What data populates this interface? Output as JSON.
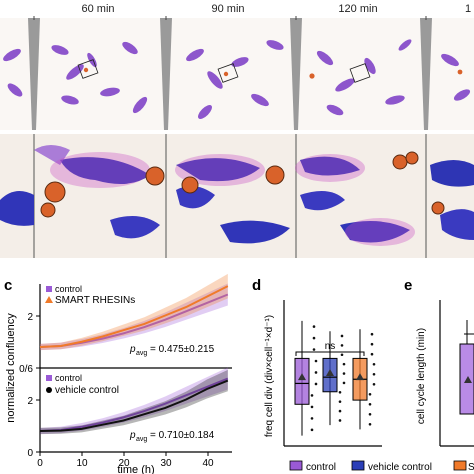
{
  "colors": {
    "control": "#9a5ad6",
    "vehicle_control": "#2b3fb8",
    "smart_rhesins": "#f07a2a",
    "cells_stain": "#6b2bb5",
    "cells_deep": "#2d2fb5",
    "bead": "#e06a25"
  },
  "timepoints": {
    "t60": "60 min",
    "t90": "90 min",
    "t120": "120 min",
    "t_cut": "1"
  },
  "panel_labels": {
    "c": "c",
    "d": "d",
    "e": "e"
  },
  "panel_c": {
    "top_legend": {
      "series1": "control",
      "series2": "SMART RHESINs"
    },
    "bottom_legend": {
      "series1": "control",
      "series2": "vehicle control"
    },
    "top_stat": {
      "p": "p",
      "sub": "avg",
      "value": " = 0.475±0.215"
    },
    "bottom_stat": {
      "p": "p",
      "sub": "avg",
      "value": " = 0.710±0.184"
    },
    "ytick_top": "2",
    "ytick_mid": "0/6",
    "ytick_bottom": "2",
    "ytick_zero": "0",
    "xticks": [
      "0",
      "10",
      "20",
      "30",
      "40"
    ],
    "xlabel": "time (h)",
    "ylabel": "normalized confluency"
  },
  "panel_d": {
    "ylabel": "freq cell div (div×cell⁻¹×d⁻¹)",
    "ns_label": "ns"
  },
  "panel_e": {
    "ylabel": "cell cycle length (min)"
  },
  "bottom_legend": {
    "control": "control",
    "vehicle_control": "vehicle control",
    "smart_cut": "S"
  },
  "chart_data": [
    {
      "type": "line",
      "panel": "c-top",
      "xlabel": "time (h)",
      "ylabel": "normalized confluency",
      "xlim": [
        0,
        46
      ],
      "series": [
        {
          "name": "control",
          "x": [
            0,
            5,
            10,
            15,
            20,
            25,
            30,
            35,
            40,
            45
          ],
          "y": [
            1.0,
            1.05,
            1.2,
            1.4,
            1.65,
            1.95,
            2.3,
            2.7,
            3.1,
            3.5
          ]
        },
        {
          "name": "SMART RHESINs",
          "x": [
            0,
            5,
            10,
            15,
            20,
            25,
            30,
            35,
            40,
            45
          ],
          "y": [
            1.0,
            1.05,
            1.25,
            1.5,
            1.8,
            2.1,
            2.5,
            2.9,
            3.4,
            3.9
          ]
        }
      ]
    },
    {
      "type": "line",
      "panel": "c-bottom",
      "xlabel": "time (h)",
      "ylabel": "normalized confluency",
      "xlim": [
        0,
        46
      ],
      "series": [
        {
          "name": "control",
          "x": [
            0,
            5,
            10,
            15,
            20,
            25,
            30,
            35,
            40,
            45
          ],
          "y": [
            1.0,
            1.05,
            1.2,
            1.4,
            1.65,
            1.95,
            2.3,
            2.7,
            3.1,
            3.5
          ]
        },
        {
          "name": "vehicle control",
          "x": [
            0,
            5,
            10,
            15,
            20,
            25,
            30,
            35,
            40,
            45
          ],
          "y": [
            1.0,
            1.02,
            1.1,
            1.3,
            1.5,
            1.8,
            2.1,
            2.5,
            3.0,
            3.4
          ]
        }
      ]
    },
    {
      "type": "box",
      "panel": "d",
      "ylabel": "freq cell div (div×cell⁻¹×d⁻¹)",
      "categories": [
        "control",
        "vehicle control",
        "SMART RHESINs"
      ],
      "boxes": [
        {
          "name": "control",
          "q1": 0.2,
          "median": 0.3,
          "q3": 0.42,
          "min": 0.05,
          "max": 0.6,
          "mean": 0.33
        },
        {
          "name": "vehicle control",
          "q1": 0.26,
          "median": 0.33,
          "q3": 0.42,
          "min": 0.1,
          "max": 0.55,
          "mean": 0.35
        },
        {
          "name": "SMART RHESINs",
          "q1": 0.22,
          "median": 0.32,
          "q3": 0.42,
          "min": 0.08,
          "max": 0.56,
          "mean": 0.33
        }
      ]
    }
  ]
}
